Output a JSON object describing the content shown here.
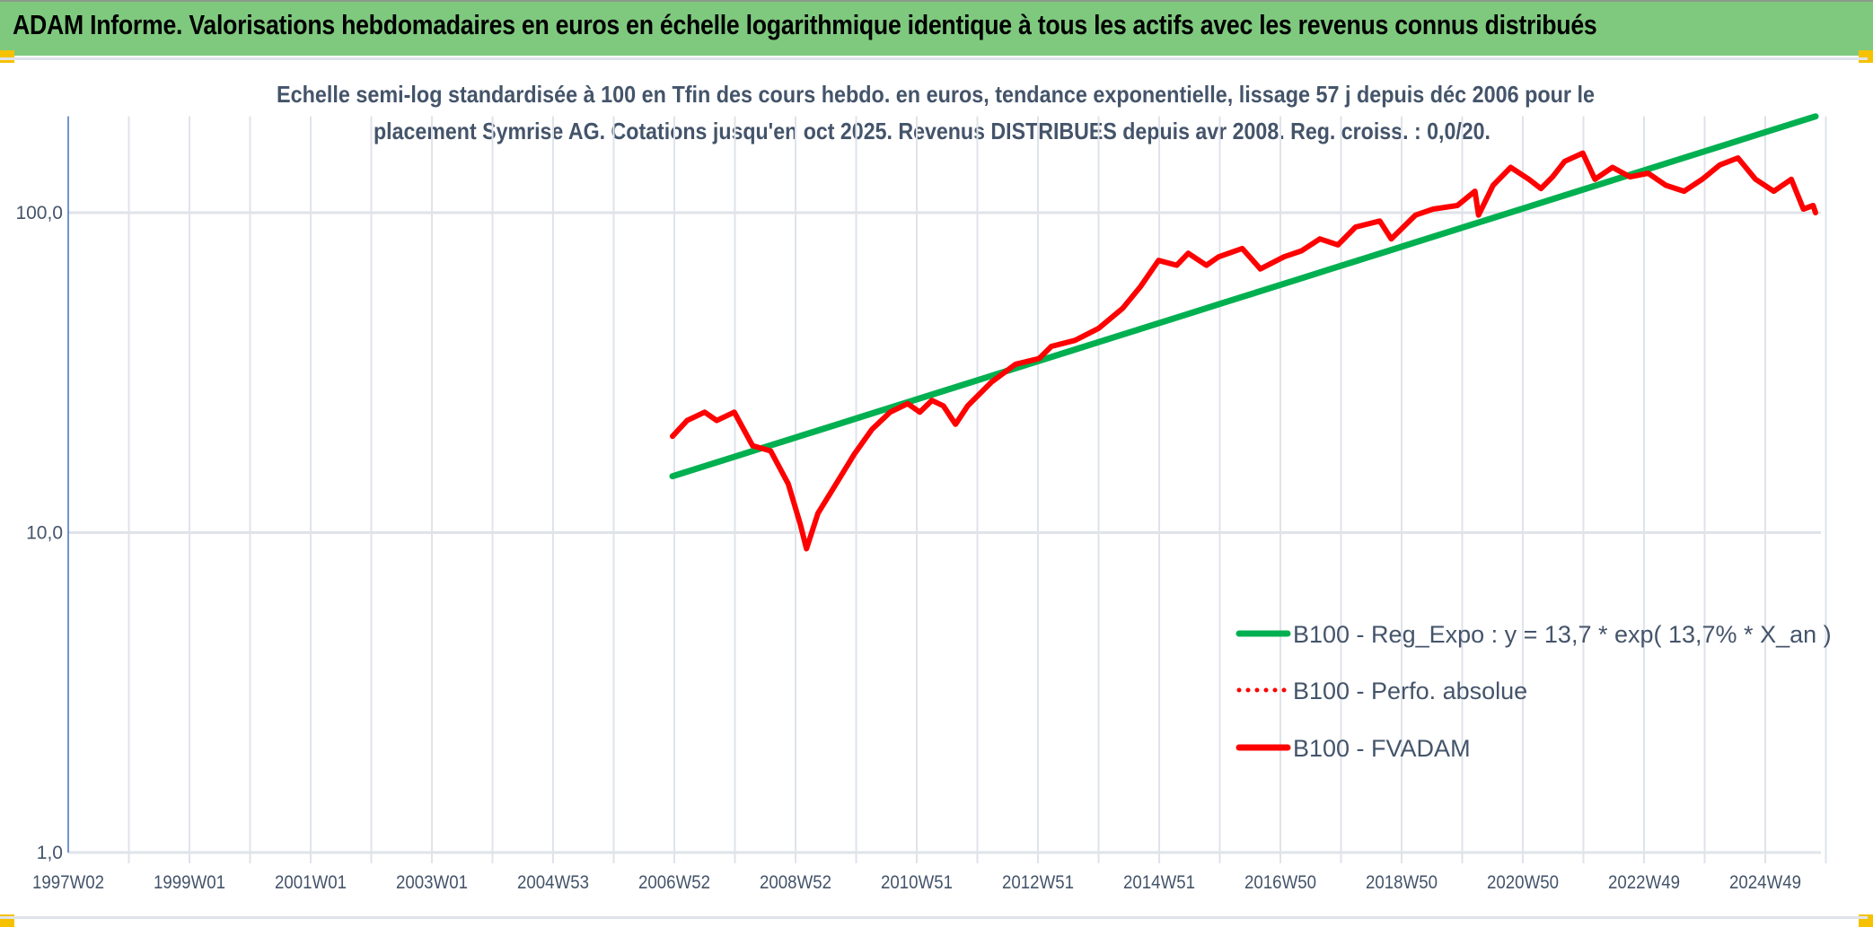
{
  "header": {
    "title": "ADAM Informe. Valorisations hebdomadaires en euros en échelle logarithmique identique à tous les actifs avec les revenus connus distribués"
  },
  "colors": {
    "header_bg": "#7fc97f",
    "regression": "#00b050",
    "fvadam": "#ff0000",
    "grid": "#dfe3ea",
    "text": "#44546a"
  },
  "chart_data": {
    "type": "line",
    "title_lines": [
      "Echelle semi-log standardisée à 100 en Tfin des cours hebdo. en euros, tendance exponentielle, lissage 57 j depuis déc 2006 pour le",
      "placement Symrise AG. Cotations jusqu'en oct 2025. Revenus DISTRIBUES depuis avr 2008. Reg. croiss. : 0,0/20."
    ],
    "yscale": "log",
    "ylim": [
      1,
      200
    ],
    "xlim": [
      1997.0,
      2026.0
    ],
    "y_ticks": [
      {
        "value": 1,
        "label": "1,0"
      },
      {
        "value": 10,
        "label": "10,0"
      },
      {
        "value": 100,
        "label": "100,0"
      }
    ],
    "x_ticks": [
      {
        "value": 1997.0,
        "label": "1997W02"
      },
      {
        "value": 1999.0,
        "label": "1999W01"
      },
      {
        "value": 2001.0,
        "label": "2001W01"
      },
      {
        "value": 2003.0,
        "label": "2003W01"
      },
      {
        "value": 2005.0,
        "label": "2004W53"
      },
      {
        "value": 2007.0,
        "label": "2006W52"
      },
      {
        "value": 2009.0,
        "label": "2008W52"
      },
      {
        "value": 2011.0,
        "label": "2010W51"
      },
      {
        "value": 2013.0,
        "label": "2012W51"
      },
      {
        "value": 2015.0,
        "label": "2014W51"
      },
      {
        "value": 2017.0,
        "label": "2016W50"
      },
      {
        "value": 2019.0,
        "label": "2018W50"
      },
      {
        "value": 2021.0,
        "label": "2020W50"
      },
      {
        "value": 2023.0,
        "label": "2022W49"
      },
      {
        "value": 2025.0,
        "label": "2024W49"
      }
    ],
    "grid": true,
    "legend_position": "bottom-right",
    "series": [
      {
        "name": "B100 - Reg_Expo : y = 13,7 * exp( 13,7% *  X_an )",
        "style": "solid",
        "color": "#00b050",
        "points": [
          [
            2006.97,
            15
          ],
          [
            2025.83,
            200
          ]
        ]
      },
      {
        "name": "B100 - Perfo. absolue",
        "style": "dotted",
        "color": "#ff0000",
        "points": []
      },
      {
        "name": "B100 - FVADAM",
        "style": "solid",
        "color": "#ff0000",
        "points": [
          [
            2006.97,
            20
          ],
          [
            2007.21,
            22.4
          ],
          [
            2007.5,
            23.8
          ],
          [
            2007.7,
            22.4
          ],
          [
            2007.99,
            23.8
          ],
          [
            2008.29,
            18.7
          ],
          [
            2008.59,
            18.0
          ],
          [
            2008.88,
            14.2
          ],
          [
            2009.08,
            10.6
          ],
          [
            2009.18,
            8.9
          ],
          [
            2009.37,
            11.5
          ],
          [
            2009.67,
            14.2
          ],
          [
            2009.97,
            17.6
          ],
          [
            2010.26,
            21.0
          ],
          [
            2010.56,
            23.8
          ],
          [
            2010.85,
            25.3
          ],
          [
            2011.05,
            23.8
          ],
          [
            2011.25,
            25.9
          ],
          [
            2011.44,
            24.9
          ],
          [
            2011.64,
            21.8
          ],
          [
            2011.84,
            24.9
          ],
          [
            2012.23,
            29.5
          ],
          [
            2012.63,
            33.6
          ],
          [
            2013.02,
            35
          ],
          [
            2013.22,
            38.2
          ],
          [
            2013.61,
            39.9
          ],
          [
            2014.0,
            43.5
          ],
          [
            2014.4,
            50.3
          ],
          [
            2014.69,
            58.7
          ],
          [
            2014.99,
            70.9
          ],
          [
            2015.29,
            68.5
          ],
          [
            2015.48,
            74.7
          ],
          [
            2015.78,
            68.5
          ],
          [
            2015.98,
            72.8
          ],
          [
            2016.37,
            77.3
          ],
          [
            2016.67,
            66.7
          ],
          [
            2017.06,
            72.8
          ],
          [
            2017.35,
            76
          ],
          [
            2017.65,
            82.8
          ],
          [
            2017.95,
            79.3
          ],
          [
            2018.24,
            90.2
          ],
          [
            2018.64,
            94.2
          ],
          [
            2018.83,
            82.8
          ],
          [
            2019.23,
            98.3
          ],
          [
            2019.52,
            102.6
          ],
          [
            2019.92,
            105.3
          ],
          [
            2020.21,
            116.7
          ],
          [
            2020.27,
            98.3
          ],
          [
            2020.51,
            121.8
          ],
          [
            2020.8,
            138.6
          ],
          [
            2021.1,
            127.2
          ],
          [
            2021.3,
            119.0
          ],
          [
            2021.49,
            129.4
          ],
          [
            2021.69,
            144.7
          ],
          [
            2021.99,
            153.6
          ],
          [
            2022.19,
            127.2
          ],
          [
            2022.48,
            138.6
          ],
          [
            2022.77,
            129.4
          ],
          [
            2023.07,
            132.8
          ],
          [
            2023.36,
            121.8
          ],
          [
            2023.66,
            116.7
          ],
          [
            2023.96,
            127.2
          ],
          [
            2024.25,
            141
          ],
          [
            2024.55,
            148.3
          ],
          [
            2024.84,
            127.2
          ],
          [
            2025.14,
            116.7
          ],
          [
            2025.43,
            127.2
          ],
          [
            2025.63,
            102.6
          ],
          [
            2025.79,
            105.3
          ],
          [
            2025.83,
            100
          ]
        ]
      }
    ]
  }
}
